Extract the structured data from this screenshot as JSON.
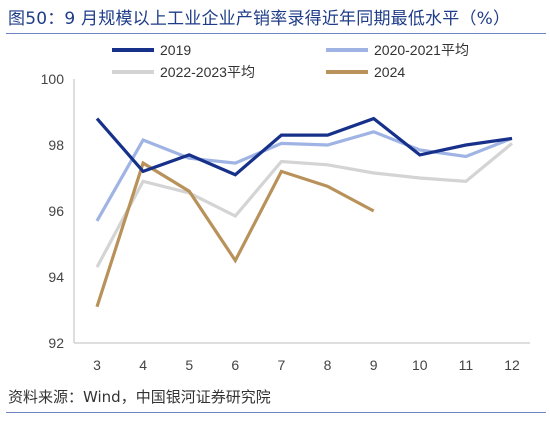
{
  "title": "图50：9 月规模以上工业企业产销率录得近年同期最低水平（%）",
  "source": "资料来源：Wind，中国银河证券研究院",
  "chart_data": {
    "type": "line",
    "title": "图50：9 月规模以上工业企业产销率录得近年同期最低水平（%）",
    "x": [
      3,
      4,
      5,
      6,
      7,
      8,
      9,
      10,
      11,
      12
    ],
    "xlabel": "",
    "ylabel": "",
    "ylim": [
      92,
      100
    ],
    "yticks": [
      92,
      94,
      96,
      98,
      100
    ],
    "grid": false,
    "legend_position": "top",
    "series": [
      {
        "name": "2019",
        "color": "#17318a",
        "values": [
          98.8,
          97.2,
          97.7,
          97.1,
          98.3,
          98.3,
          98.8,
          97.7,
          98.0,
          98.2
        ]
      },
      {
        "name": "2020-2021平均",
        "color": "#9fb4e4",
        "values": [
          95.7,
          98.15,
          97.6,
          97.45,
          98.05,
          98.0,
          98.4,
          97.85,
          97.65,
          98.2
        ]
      },
      {
        "name": "2022-2023平均",
        "color": "#d4d4d4",
        "values": [
          94.3,
          96.9,
          96.55,
          95.85,
          97.5,
          97.4,
          97.15,
          97.0,
          96.9,
          98.05
        ]
      },
      {
        "name": "2024",
        "color": "#b8925a",
        "values": [
          93.1,
          97.45,
          96.6,
          94.5,
          97.2,
          96.75,
          96.0,
          null,
          null,
          null
        ]
      }
    ]
  }
}
